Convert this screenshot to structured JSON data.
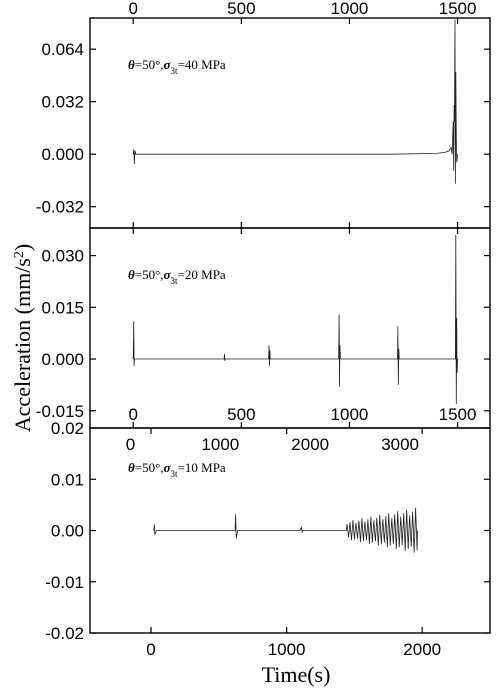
{
  "figure": {
    "ylabel": "Acceleration (mm/s²)",
    "ylabel_main": "Acceleration (mm/s",
    "ylabel_sup": "2",
    "ylabel_close": ")",
    "xlabel": "Time(s)"
  },
  "chart_data": [
    {
      "type": "line",
      "annotation": {
        "theta": "θ",
        "theta_val": "=50°,",
        "sigma": "σ",
        "sub": "3t",
        "rest": "=40 MPa"
      },
      "xlim": [
        -200,
        1650
      ],
      "ylim": [
        -0.045,
        0.083
      ],
      "xticks": [
        0,
        500,
        1000,
        1500
      ],
      "xtick_labels": [
        "0",
        "500",
        "1000",
        "1500"
      ],
      "xtick_position": "top",
      "yticks": [
        0.064,
        0.032,
        0.0,
        -0.032
      ],
      "ytick_labels": [
        "0.064",
        "0.032",
        "0.000",
        "-0.032"
      ],
      "x": [
        0,
        3,
        5,
        8,
        12,
        20,
        400,
        800,
        1200,
        1400,
        1440,
        1460,
        1470,
        1475,
        1480,
        1482,
        1484,
        1486,
        1488,
        1490,
        1492,
        1494,
        1496,
        1500
      ],
      "y": [
        0.0,
        0.003,
        -0.006,
        0.002,
        0.0,
        0.0,
        0.0,
        0.0,
        0.0,
        0.0005,
        0.001,
        0.002,
        0.004,
        0.0,
        0.02,
        -0.01,
        0.03,
        0.02,
        0.082,
        -0.018,
        0.05,
        0.01,
        -0.005,
        0.0
      ]
    },
    {
      "type": "line",
      "annotation": {
        "theta": "θ",
        "theta_val": "=50°,",
        "sigma": "σ",
        "sub": "3t",
        "rest": "=20 MPa"
      },
      "xlim": [
        -200,
        1650
      ],
      "ylim": [
        -0.02,
        0.038
      ],
      "xticks": [
        0,
        500,
        1000,
        1500
      ],
      "xtick_labels": [
        "0",
        "500",
        "1000",
        "1500"
      ],
      "xtick_position": "bottom-inside",
      "yticks": [
        0.03,
        0.015,
        0.0,
        -0.015
      ],
      "ytick_labels": [
        "0.030",
        "0.015",
        "0.000",
        "-0.015"
      ],
      "x": [
        0,
        2,
        4,
        6,
        10,
        20,
        400,
        420,
        422,
        424,
        426,
        440,
        626,
        628,
        630,
        632,
        634,
        650,
        950,
        952,
        954,
        956,
        958,
        980,
        1222,
        1224,
        1226,
        1228,
        1230,
        1250,
        1470,
        1490,
        1492,
        1494,
        1496,
        1498,
        1500
      ],
      "y": [
        0.0,
        0.011,
        -0.002,
        0.0,
        0.0,
        0.0,
        0.0,
        0.0,
        0.0015,
        -0.0005,
        0.0,
        0.0,
        0.0,
        0.004,
        -0.002,
        0.0025,
        0.0,
        0.0,
        0.0,
        0.013,
        -0.008,
        0.004,
        0.0,
        0.0,
        0.0,
        0.0095,
        -0.0075,
        0.003,
        0.0,
        0.0,
        0.0,
        0.0,
        0.036,
        -0.013,
        0.012,
        -0.004,
        0.0
      ]
    },
    {
      "type": "line",
      "annotation": {
        "theta": "θ",
        "theta_val": "=50°,",
        "sigma": "σ",
        "sub": "3t",
        "rest": "=10 MPa"
      },
      "xlim": [
        -450,
        2500
      ],
      "ylim": [
        -0.02,
        0.02
      ],
      "xticks": [
        0,
        1000,
        2000
      ],
      "xtick_labels": [
        "0",
        "1000",
        "2000"
      ],
      "xtick_position": "bottom",
      "secondary_xtick_labels": [
        "0",
        "1000",
        "2000",
        "3000"
      ],
      "secondary_xticks": [
        0,
        1000,
        2000,
        3000
      ],
      "secondary_xlim": [
        -450,
        4000
      ],
      "yticks": [
        0.02,
        0.01,
        0.0,
        -0.01,
        -0.02
      ],
      "ytick_labels": [
        "0.02",
        "0.01",
        "0.00",
        "-0.01",
        "-0.02"
      ],
      "burst": {
        "start": 1440,
        "end": 1960,
        "step": 22,
        "amp_start": 0.0018,
        "amp_end": 0.0045
      },
      "x": [
        20,
        24,
        28,
        40,
        600,
        620,
        624,
        628,
        640,
        1100,
        1110,
        1114,
        1118,
        1130
      ],
      "y": [
        0.0,
        0.0012,
        -0.0008,
        0.0,
        0.0,
        0.0,
        0.0032,
        -0.0015,
        0.0,
        0.0,
        0.0006,
        -0.0004,
        0.0,
        0.0
      ]
    }
  ]
}
